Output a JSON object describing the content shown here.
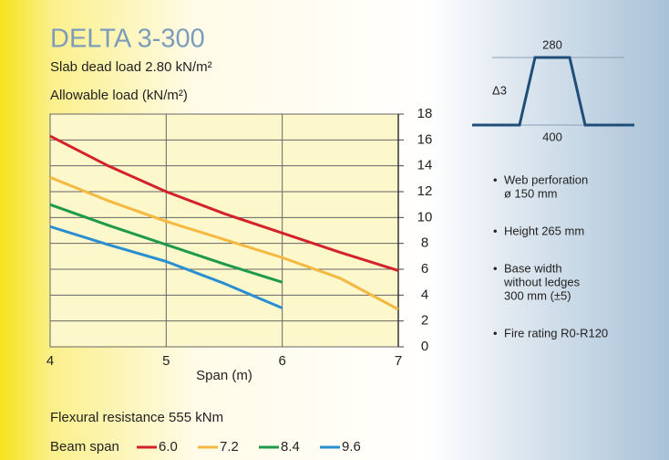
{
  "chart_data": {
    "type": "line",
    "title": "DELTA 3-300",
    "subtitle": "Slab dead load 2.80 kN/m²",
    "ylabel": "Allowable load (kN/m²)",
    "xlabel": "Span (m)",
    "note": "Flexural resistance 555 kNm",
    "legend_title": "Beam span",
    "x": [
      4,
      4.5,
      5,
      5.5,
      6,
      6.5,
      7
    ],
    "xlim": [
      4,
      7
    ],
    "xticks": [
      4,
      5,
      6,
      7
    ],
    "ylim": [
      0,
      18
    ],
    "yticks": [
      0,
      2,
      4,
      6,
      8,
      10,
      12,
      14,
      16,
      18
    ],
    "grid": true,
    "series": [
      {
        "name": "6.0",
        "color": "#d2232a",
        "values": [
          16.3,
          14,
          12.0,
          10.3,
          8.8,
          7.3,
          5.9
        ]
      },
      {
        "name": "7.2",
        "color": "#f5b841",
        "values": [
          13.1,
          11.3,
          9.7,
          8.3,
          6.9,
          5.3,
          2.9
        ]
      },
      {
        "name": "8.4",
        "color": "#1e9a4a",
        "values": [
          11.0,
          9.4,
          7.9,
          6.4,
          5.0,
          null,
          null
        ]
      },
      {
        "name": "9.6",
        "color": "#2a8fd0",
        "values": [
          9.3,
          7.9,
          6.6,
          4.9,
          3.0,
          null,
          null
        ]
      }
    ]
  },
  "diagram": {
    "top": "280",
    "height": "Δ3",
    "bottom": "400"
  },
  "bullets": [
    [
      "Web perforation",
      "ø 150 mm"
    ],
    [
      "Height 265 mm"
    ],
    [
      "Base width",
      "without ledges",
      "300 mm (±5)"
    ],
    [
      "Fire rating R0-R120"
    ]
  ]
}
